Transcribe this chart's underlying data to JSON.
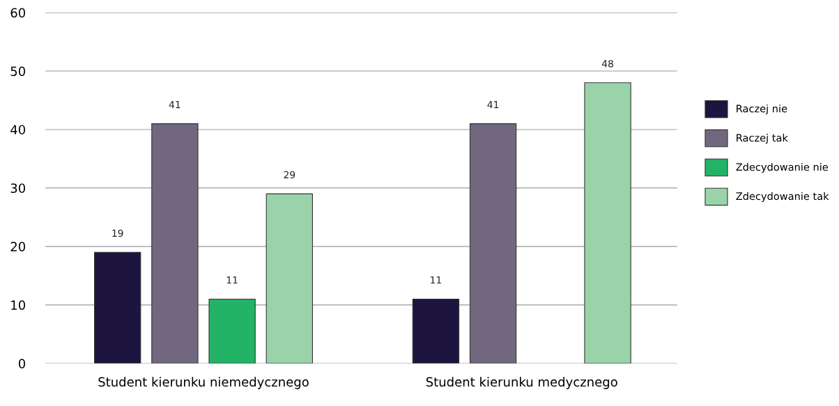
{
  "chart_data": {
    "type": "bar",
    "categories": [
      "Student kierunku niemedycznego",
      "Student kierunku medycznego"
    ],
    "series": [
      {
        "name": "Raczej nie",
        "color": "#1e1440",
        "values": [
          19,
          11
        ]
      },
      {
        "name": "Raczej tak",
        "color": "#716880",
        "values": [
          41,
          41
        ]
      },
      {
        "name": "Zdecydowanie nie",
        "color": "#22b366",
        "values": [
          11,
          null
        ]
      },
      {
        "name": "Zdecydowanie tak",
        "color": "#9ad3aa",
        "values": [
          29,
          48
        ]
      }
    ],
    "ylim": [
      0,
      60
    ],
    "yticks": [
      0,
      10,
      20,
      30,
      40,
      50,
      60
    ],
    "grid": "y",
    "legend": "right",
    "data_labels": true
  }
}
